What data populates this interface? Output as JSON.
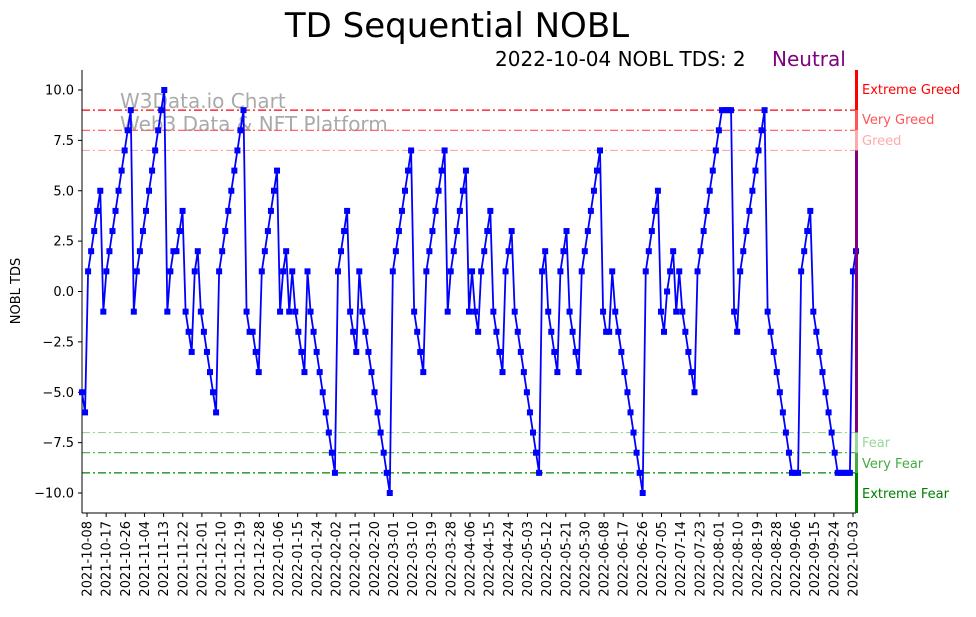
{
  "chart_data": {
    "type": "line",
    "title": "TD Sequential NOBL",
    "subtitle": "2022-10-04 NOBL TDS: 2",
    "status": "Neutral",
    "status_color": "#800080",
    "ylabel": "NOBL TDS",
    "xlabel": "",
    "ylim": [
      -11,
      11
    ],
    "x_range": [
      "2021-10-06",
      "2022-10-04"
    ],
    "x_frequency": "trading days",
    "series_color": "#0000ff",
    "watermark": [
      "W3Data.io Chart",
      "Web3 Data & NFT Platform"
    ],
    "yticks": [
      {
        "value": 10,
        "label": "10.0"
      },
      {
        "value": 7.5,
        "label": "7.5"
      },
      {
        "value": 5,
        "label": "5.0"
      },
      {
        "value": 2.5,
        "label": "2.5"
      },
      {
        "value": 0,
        "label": "0.0"
      },
      {
        "value": -2.5,
        "label": "−2.5"
      },
      {
        "value": -5,
        "label": "−5.0"
      },
      {
        "value": -7.5,
        "label": "−7.5"
      },
      {
        "value": -10,
        "label": "−10.0"
      }
    ],
    "xticks": [
      "2021-10-08",
      "2021-10-17",
      "2021-10-26",
      "2021-11-04",
      "2021-11-13",
      "2021-11-22",
      "2021-12-01",
      "2021-12-10",
      "2021-12-19",
      "2021-12-28",
      "2022-01-06",
      "2022-01-15",
      "2022-01-24",
      "2022-02-02",
      "2022-02-11",
      "2022-02-20",
      "2022-03-01",
      "2022-03-10",
      "2022-03-19",
      "2022-03-28",
      "2022-04-06",
      "2022-04-15",
      "2022-04-24",
      "2022-05-03",
      "2022-05-12",
      "2022-05-21",
      "2022-05-30",
      "2022-06-08",
      "2022-06-17",
      "2022-06-26",
      "2022-07-05",
      "2022-07-14",
      "2022-07-23",
      "2022-08-01",
      "2022-08-10",
      "2022-08-19",
      "2022-08-28",
      "2022-09-06",
      "2022-09-15",
      "2022-09-24",
      "2022-10-03"
    ],
    "thresholds": [
      {
        "value": 9,
        "label": "Extreme Greed",
        "color": "#ff0000"
      },
      {
        "value": 8,
        "label": "Very Greed",
        "color": "#ff5555"
      },
      {
        "value": 7,
        "label": "Greed",
        "color": "#ffaaaa"
      },
      {
        "value": -7,
        "label": "Fear",
        "color": "#99d699"
      },
      {
        "value": -8,
        "label": "Very Fear",
        "color": "#44aa44"
      },
      {
        "value": -9,
        "label": "Extreme Fear",
        "color": "#008000"
      }
    ],
    "neutral_color": "#800080",
    "values": [
      -5,
      -6,
      1,
      2,
      3,
      4,
      5,
      -1,
      1,
      2,
      3,
      4,
      5,
      6,
      7,
      8,
      9,
      -1,
      1,
      2,
      3,
      4,
      5,
      6,
      7,
      8,
      9,
      10,
      -1,
      1,
      2,
      2,
      3,
      4,
      -1,
      -2,
      -3,
      1,
      2,
      -1,
      -2,
      -3,
      -4,
      -5,
      -6,
      1,
      2,
      3,
      4,
      5,
      6,
      7,
      8,
      9,
      -1,
      -2,
      -2,
      -3,
      -4,
      1,
      2,
      3,
      4,
      5,
      6,
      -1,
      1,
      2,
      -1,
      1,
      -1,
      -2,
      -3,
      -4,
      1,
      -1,
      -2,
      -3,
      -4,
      -5,
      -6,
      -7,
      -8,
      -9,
      1,
      2,
      3,
      4,
      -1,
      -2,
      -3,
      1,
      -1,
      -2,
      -3,
      -4,
      -5,
      -6,
      -7,
      -8,
      -9,
      -10,
      1,
      2,
      3,
      4,
      5,
      6,
      7,
      -1,
      -2,
      -3,
      -4,
      1,
      2,
      3,
      4,
      5,
      6,
      7,
      -1,
      1,
      2,
      3,
      4,
      5,
      6,
      -1,
      1,
      -1,
      -2,
      1,
      2,
      3,
      4,
      -1,
      -2,
      -3,
      -4,
      1,
      2,
      3,
      -1,
      -2,
      -3,
      -4,
      -5,
      -6,
      -7,
      -8,
      -9,
      1,
      2,
      -1,
      -2,
      -3,
      -4,
      1,
      2,
      3,
      -1,
      -2,
      -3,
      -4,
      1,
      2,
      3,
      4,
      5,
      6,
      7,
      -1,
      -2,
      -2,
      1,
      -1,
      -2,
      -3,
      -4,
      -5,
      -6,
      -7,
      -8,
      -9,
      -10,
      1,
      2,
      3,
      4,
      5,
      -1,
      -2,
      0,
      1,
      2,
      -1,
      1,
      -1,
      -2,
      -3,
      -4,
      -5,
      1,
      2,
      3,
      4,
      5,
      6,
      7,
      8,
      9,
      9,
      9,
      9,
      -1,
      -2,
      1,
      2,
      3,
      4,
      5,
      6,
      7,
      8,
      9,
      -1,
      -2,
      -3,
      -4,
      -5,
      -6,
      -7,
      -8,
      -9,
      -9,
      -9,
      1,
      2,
      3,
      4,
      -1,
      -2,
      -3,
      -4,
      -5,
      -6,
      -7,
      -8,
      -9,
      -9,
      -9,
      -9,
      -9,
      1,
      2
    ]
  }
}
